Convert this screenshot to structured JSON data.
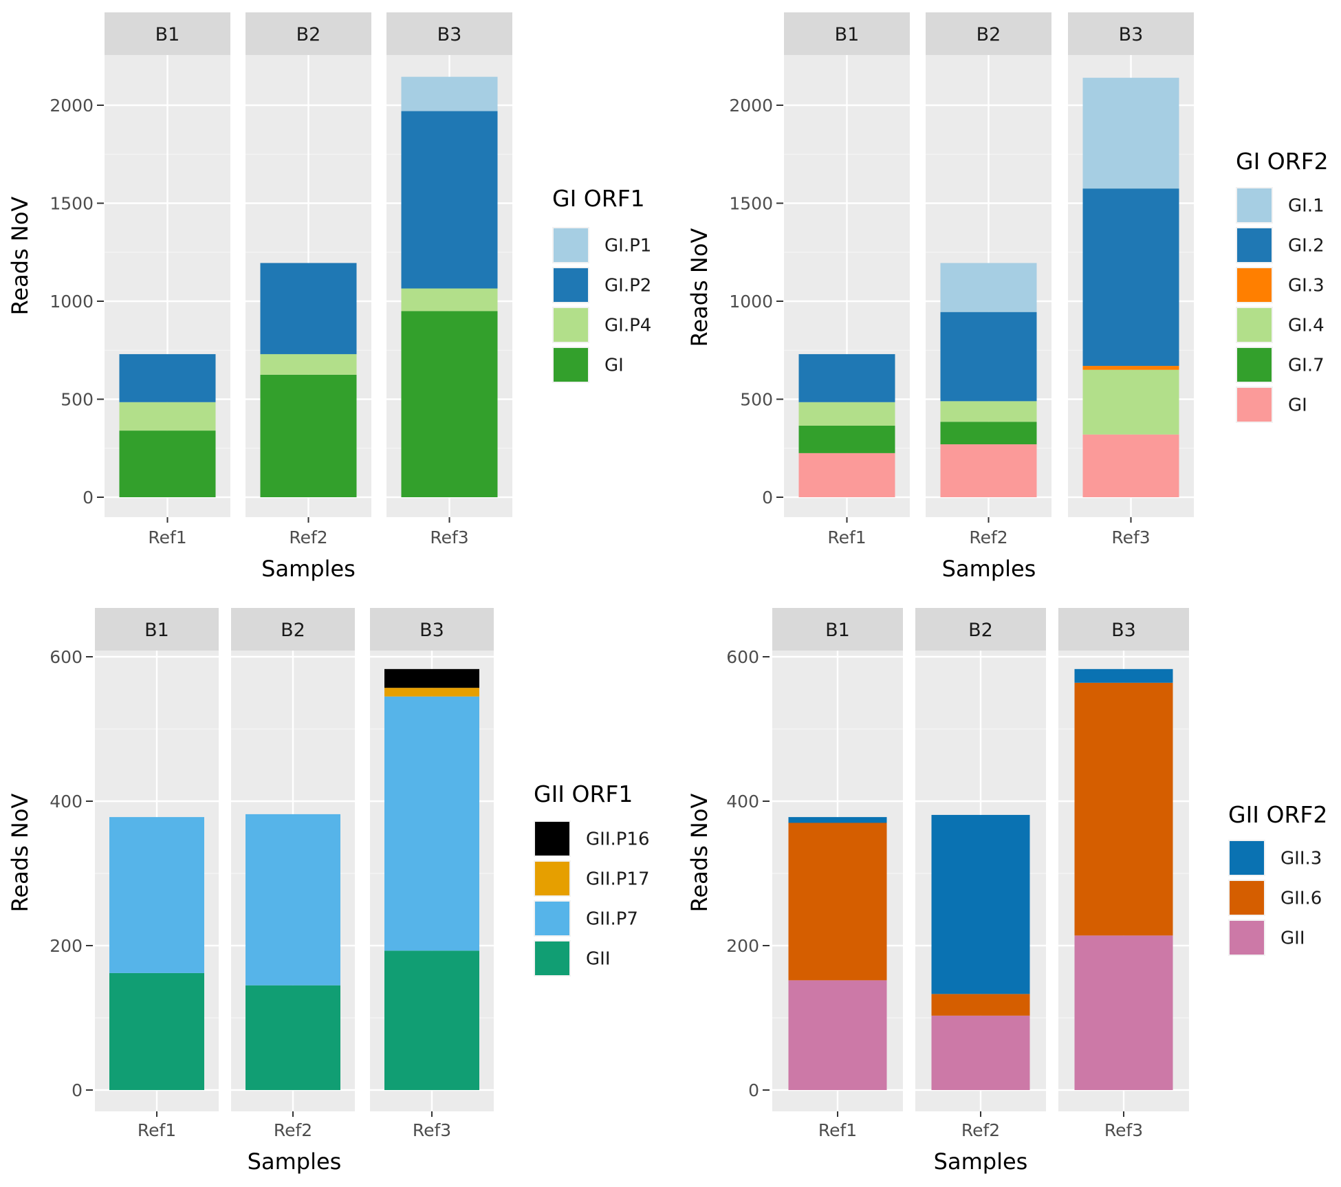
{
  "chart_data": [
    {
      "type": "bar",
      "stacked": true,
      "facets": [
        "B1",
        "B2",
        "B3"
      ],
      "categories": [
        "Ref1",
        "Ref2",
        "Ref3"
      ],
      "xlabel": "Samples",
      "ylabel": "Reads NoV",
      "ylim": [
        0,
        2290
      ],
      "yticks": [
        0,
        500,
        1000,
        1500,
        2000
      ],
      "legend_title": "GI ORF1",
      "legend_order": [
        "GI.P1",
        "GI.P2",
        "GI.P4",
        "GI"
      ],
      "series": [
        {
          "name": "GI",
          "color": "#33a02c",
          "values": [
            340,
            625,
            950
          ]
        },
        {
          "name": "GI.P4",
          "color": "#b2df8a",
          "values": [
            145,
            105,
            115
          ]
        },
        {
          "name": "GI.P2",
          "color": "#1f78b4",
          "values": [
            245,
            465,
            905
          ]
        },
        {
          "name": "GI.P1",
          "color": "#a6cee3",
          "values": [
            0,
            0,
            175
          ]
        }
      ]
    },
    {
      "type": "bar",
      "stacked": true,
      "facets": [
        "B1",
        "B2",
        "B3"
      ],
      "categories": [
        "Ref1",
        "Ref2",
        "Ref3"
      ],
      "xlabel": "Samples",
      "ylabel": "Reads NoV",
      "ylim": [
        0,
        2290
      ],
      "yticks": [
        0,
        500,
        1000,
        1500,
        2000
      ],
      "legend_title": "GI ORF2",
      "legend_order": [
        "GI.1",
        "GI.2",
        "GI.3",
        "GI.4",
        "GI.7",
        "GI"
      ],
      "series": [
        {
          "name": "GI",
          "color": "#fb9a99",
          "values": [
            225,
            270,
            320
          ]
        },
        {
          "name": "GI.7",
          "color": "#33a02c",
          "values": [
            140,
            115,
            0
          ]
        },
        {
          "name": "GI.4",
          "color": "#b2df8a",
          "values": [
            120,
            105,
            330
          ]
        },
        {
          "name": "GI.3",
          "color": "#ff7f00",
          "values": [
            0,
            0,
            20
          ]
        },
        {
          "name": "GI.2",
          "color": "#1f78b4",
          "values": [
            245,
            455,
            905
          ]
        },
        {
          "name": "GI.1",
          "color": "#a6cee3",
          "values": [
            0,
            250,
            565
          ]
        }
      ]
    },
    {
      "type": "bar",
      "stacked": true,
      "facets": [
        "B1",
        "B2",
        "B3"
      ],
      "categories": [
        "Ref1",
        "Ref2",
        "Ref3"
      ],
      "xlabel": "Samples",
      "ylabel": "Reads NoV",
      "ylim": [
        0,
        630
      ],
      "yticks": [
        0,
        200,
        400,
        600
      ],
      "legend_title": "GII ORF1",
      "legend_order": [
        "GII.P16",
        "GII.P17",
        "GII.P7",
        "GII"
      ],
      "series": [
        {
          "name": "GII",
          "color": "#119e73",
          "values": [
            162,
            145,
            193
          ]
        },
        {
          "name": "GII.P7",
          "color": "#56b4e9",
          "values": [
            216,
            237,
            352
          ]
        },
        {
          "name": "GII.P17",
          "color": "#e69f00",
          "values": [
            0,
            0,
            12
          ]
        },
        {
          "name": "GII.P16",
          "color": "#000000",
          "values": [
            0,
            0,
            26
          ]
        }
      ]
    },
    {
      "type": "bar",
      "stacked": true,
      "facets": [
        "B1",
        "B2",
        "B3"
      ],
      "categories": [
        "Ref1",
        "Ref2",
        "Ref3"
      ],
      "xlabel": "Samples",
      "ylabel": "Reads NoV",
      "ylim": [
        0,
        630
      ],
      "yticks": [
        0,
        200,
        400,
        600
      ],
      "legend_title": "GII ORF2",
      "legend_order": [
        "GII.3",
        "GII.6",
        "GII"
      ],
      "series": [
        {
          "name": "GII",
          "color": "#cc79a7",
          "values": [
            152,
            103,
            214
          ]
        },
        {
          "name": "GII.6",
          "color": "#d55e00",
          "values": [
            218,
            30,
            350
          ]
        },
        {
          "name": "GII.3",
          "color": "#0a72b2",
          "values": [
            8,
            248,
            19
          ]
        }
      ]
    }
  ]
}
